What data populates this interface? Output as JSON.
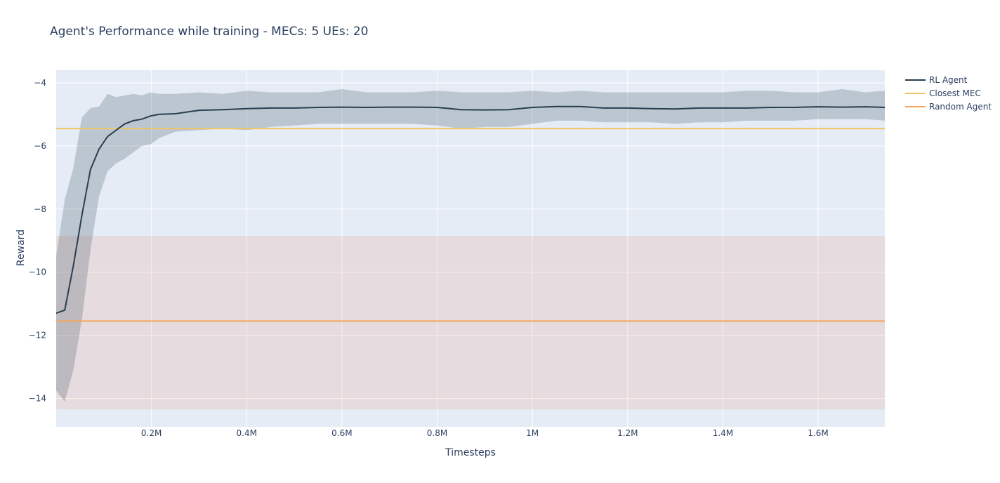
{
  "chart_data": {
    "type": "line",
    "title": "Agent's Performance while training - MECs: 5 UEs: 20",
    "xlabel": "Timesteps",
    "ylabel": "Reward",
    "xlim": [
      0,
      1740000
    ],
    "ylim": [
      -14.9,
      -3.6
    ],
    "xticks": [
      200000,
      400000,
      600000,
      800000,
      1000000,
      1200000,
      1400000,
      1600000
    ],
    "xtick_labels": [
      "0.2M",
      "0.4M",
      "0.6M",
      "0.8M",
      "1M",
      "1.2M",
      "1.4M",
      "1.6M"
    ],
    "yticks": [
      -4,
      -6,
      -8,
      -10,
      -12,
      -14
    ],
    "ytick_labels": [
      "−4",
      "−6",
      "−8",
      "−10",
      "−12",
      "−14"
    ],
    "grid": true,
    "legend_position": "top-right",
    "colors": {
      "plot_bg": "#e5ecf6",
      "rl_agent": "#2a3f4f",
      "rl_band": "rgba(42,63,79,0.22)",
      "closest_mec": "#f2c464",
      "random_agent": "#f2a65e",
      "random_band": "rgba(240,150,120,0.18)"
    },
    "series": [
      {
        "name": "RL Agent",
        "x": [
          0,
          18000,
          36000,
          54000,
          72000,
          90000,
          108000,
          126000,
          144000,
          162000,
          180000,
          198000,
          216000,
          250000,
          300000,
          350000,
          400000,
          450000,
          500000,
          550000,
          600000,
          650000,
          700000,
          750000,
          800000,
          850000,
          900000,
          950000,
          1000000,
          1050000,
          1100000,
          1150000,
          1200000,
          1250000,
          1300000,
          1350000,
          1400000,
          1450000,
          1500000,
          1550000,
          1600000,
          1650000,
          1700000,
          1740000
        ],
        "y": [
          -11.3,
          -11.2,
          -9.8,
          -8.2,
          -6.75,
          -6.1,
          -5.7,
          -5.5,
          -5.3,
          -5.2,
          -5.15,
          -5.05,
          -5.0,
          -4.98,
          -4.87,
          -4.85,
          -4.82,
          -4.8,
          -4.8,
          -4.78,
          -4.77,
          -4.78,
          -4.77,
          -4.77,
          -4.78,
          -4.85,
          -4.86,
          -4.85,
          -4.78,
          -4.75,
          -4.75,
          -4.8,
          -4.8,
          -4.82,
          -4.83,
          -4.8,
          -4.8,
          -4.8,
          -4.78,
          -4.78,
          -4.76,
          -4.77,
          -4.76,
          -4.78
        ],
        "y_upper": [
          -9.5,
          -7.7,
          -6.7,
          -5.1,
          -4.8,
          -4.75,
          -4.35,
          -4.45,
          -4.4,
          -4.35,
          -4.4,
          -4.3,
          -4.35,
          -4.35,
          -4.3,
          -4.35,
          -4.25,
          -4.3,
          -4.3,
          -4.3,
          -4.2,
          -4.3,
          -4.3,
          -4.3,
          -4.25,
          -4.3,
          -4.3,
          -4.3,
          -4.25,
          -4.3,
          -4.25,
          -4.3,
          -4.3,
          -4.3,
          -4.3,
          -4.3,
          -4.3,
          -4.25,
          -4.25,
          -4.3,
          -4.3,
          -4.2,
          -4.3,
          -4.25
        ],
        "y_lower": [
          -13.75,
          -14.1,
          -13.1,
          -11.5,
          -9.3,
          -7.6,
          -6.8,
          -6.55,
          -6.4,
          -6.2,
          -6.0,
          -5.95,
          -5.75,
          -5.55,
          -5.5,
          -5.45,
          -5.5,
          -5.4,
          -5.35,
          -5.3,
          -5.3,
          -5.3,
          -5.3,
          -5.3,
          -5.35,
          -5.45,
          -5.4,
          -5.4,
          -5.3,
          -5.2,
          -5.2,
          -5.25,
          -5.25,
          -5.25,
          -5.3,
          -5.25,
          -5.25,
          -5.2,
          -5.2,
          -5.2,
          -5.15,
          -5.15,
          -5.15,
          -5.2
        ]
      },
      {
        "name": "Closest MEC",
        "y": -5.45
      },
      {
        "name": "Random Agent",
        "y": -11.55,
        "band": [
          -14.35,
          -8.85
        ]
      }
    ]
  }
}
